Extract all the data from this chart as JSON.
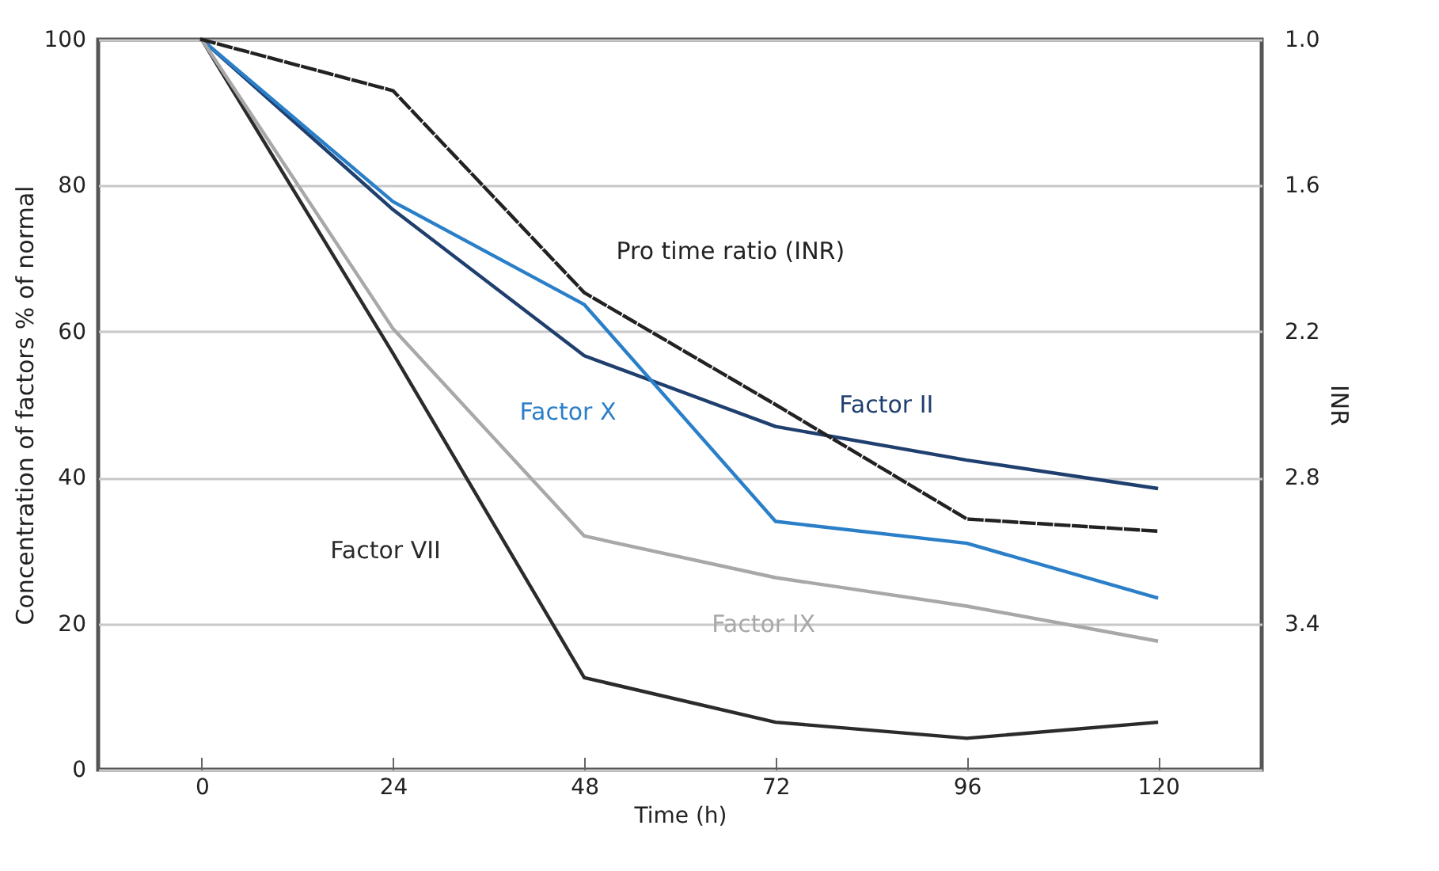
{
  "chart_data": {
    "type": "line",
    "xlabel": "Time (h)",
    "ylabel": "Concentration of factors % of normal",
    "y2label": "INR",
    "x": [
      0,
      24,
      48,
      72,
      96,
      120
    ],
    "xlim": [
      -13,
      133
    ],
    "xticks": [
      0,
      24,
      48,
      72,
      96,
      120
    ],
    "ylim": [
      0,
      100
    ],
    "yticks": [
      0,
      20,
      40,
      60,
      80,
      100
    ],
    "y2lim": [
      4.0,
      1.0
    ],
    "y2ticks": [
      {
        "value": 1,
        "label": "1.0"
      },
      1.6,
      2.2,
      2.8,
      3.4
    ],
    "grid": "y",
    "legend": false,
    "series": [
      {
        "name": "Pro time ratio (INR)",
        "color": "#222222",
        "axis": "y2",
        "line_style": "dashed",
        "values": [
          1.0,
          1.21,
          2.04,
          2.5,
          2.97,
          3.02
        ]
      },
      {
        "name": "Factor II",
        "color": "#1f3f6e",
        "values": [
          100,
          76.7,
          56.7,
          47,
          42.4,
          38.5
        ]
      },
      {
        "name": "Factor X",
        "color": "#2a7fc8",
        "values": [
          100,
          77.8,
          63.7,
          34,
          31,
          23.5
        ]
      },
      {
        "name": "Factor VII",
        "color": "#2b2b2b",
        "values": [
          100,
          57,
          12.6,
          6.5,
          4.3,
          6.5
        ]
      },
      {
        "name": "Factor IX",
        "color": "#a8a8a8",
        "values": [
          100,
          60.4,
          32,
          26.3,
          22.4,
          17.6
        ]
      }
    ]
  }
}
